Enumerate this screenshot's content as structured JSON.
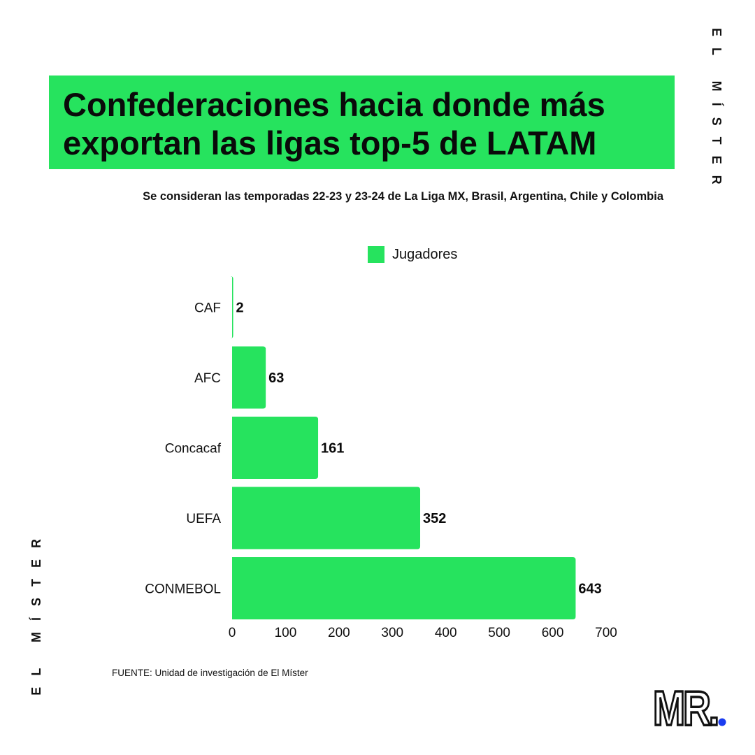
{
  "title": {
    "line1": "Confederaciones hacia donde más",
    "line2": "exportan las ligas top-5 de LATAM"
  },
  "subtitle": "Se consideran las temporadas 22-23 y 23-24 de La Liga MX, Brasil, Argentina, Chile y Colombia",
  "brand": {
    "side_text": "EL MÍSTER",
    "logo_text": "MR."
  },
  "source": "FUENTE: Unidad de investigación de El Míster",
  "colors": {
    "bar": "#26e35e",
    "title_bg": "#26e35e",
    "logo_dot": "#1a3cf0"
  },
  "chart_data": {
    "type": "bar",
    "orientation": "horizontal",
    "categories": [
      "CAF",
      "AFC",
      "Concacaf",
      "UEFA",
      "CONMEBOL"
    ],
    "series": [
      {
        "name": "Jugadores",
        "values": [
          2,
          63,
          161,
          352,
          643
        ]
      }
    ],
    "xlim": [
      0,
      700
    ],
    "xticks": [
      0,
      100,
      200,
      300,
      400,
      500,
      600,
      700
    ],
    "grid": false,
    "legend_position": "top"
  }
}
